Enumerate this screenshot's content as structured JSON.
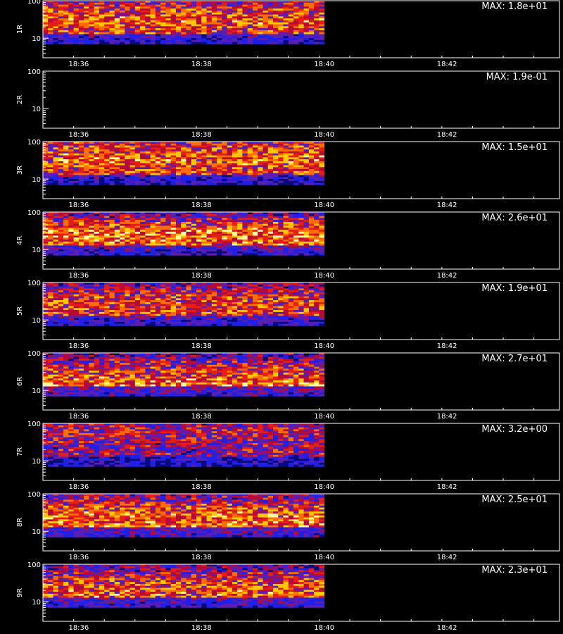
{
  "chart_data": {
    "type": "heatmap",
    "x_axis": {
      "range": [
        "18:35:25",
        "18:43:50"
      ],
      "tick_labels": [
        "18:36",
        "18:38",
        "18:40",
        "18:42"
      ],
      "data_end": "18:40"
    },
    "y_axis": {
      "scale": "log",
      "range": [
        3,
        100
      ],
      "tick_labels": [
        "10",
        "100"
      ]
    },
    "colormap": [
      "#000000",
      "#0a0a78",
      "#2020e8",
      "#5a1eb4",
      "#b40a3c",
      "#e61e14",
      "#ff6e00",
      "#ffc800",
      "#ffffa0"
    ],
    "panels": [
      {
        "label": "1R",
        "max": "MAX: 1.8e+01",
        "profile": [
          [
            0.0,
            0.45
          ],
          [
            0.16,
            0.6
          ],
          [
            0.45,
            0.7
          ],
          [
            0.75,
            0.62
          ],
          [
            1.0,
            0.45
          ]
        ],
        "empty": false
      },
      {
        "label": "2R",
        "max": "MAX: 1.9e-01",
        "profile": [],
        "empty": true
      },
      {
        "label": "3R",
        "max": "MAX: 1.5e+01",
        "profile": [
          [
            0.0,
            0.55
          ],
          [
            0.16,
            0.65
          ],
          [
            0.45,
            0.7
          ],
          [
            0.75,
            0.6
          ],
          [
            1.0,
            0.45
          ]
        ],
        "empty": false
      },
      {
        "label": "4R",
        "max": "MAX: 2.6e+01",
        "profile": [
          [
            0.0,
            0.35
          ],
          [
            0.16,
            0.5
          ],
          [
            0.45,
            0.78
          ],
          [
            0.75,
            0.68
          ],
          [
            1.0,
            0.45
          ]
        ],
        "empty": false
      },
      {
        "label": "5R",
        "max": "MAX: 1.9e+01",
        "profile": [
          [
            0.0,
            0.35
          ],
          [
            0.16,
            0.5
          ],
          [
            0.45,
            0.68
          ],
          [
            0.75,
            0.62
          ],
          [
            1.0,
            0.5
          ]
        ],
        "empty": false
      },
      {
        "label": "6R",
        "max": "MAX: 2.7e+01",
        "profile": [
          [
            0.0,
            0.3
          ],
          [
            0.16,
            0.45
          ],
          [
            0.45,
            0.62
          ],
          [
            0.75,
            0.75
          ],
          [
            1.0,
            0.55
          ]
        ],
        "empty": false
      },
      {
        "label": "7R",
        "max": "MAX: 3.2e+00",
        "profile": [
          [
            0.0,
            0.45
          ],
          [
            0.16,
            0.55
          ],
          [
            0.45,
            0.45
          ],
          [
            0.75,
            0.45
          ],
          [
            1.0,
            0.4
          ]
        ],
        "empty": false
      },
      {
        "label": "8R",
        "max": "MAX: 2.5e+01",
        "profile": [
          [
            0.0,
            0.4
          ],
          [
            0.16,
            0.5
          ],
          [
            0.45,
            0.7
          ],
          [
            0.75,
            0.72
          ],
          [
            1.0,
            0.55
          ]
        ],
        "empty": false
      },
      {
        "label": "9R",
        "max": "MAX: 2.3e+01",
        "profile": [
          [
            0.0,
            0.35
          ],
          [
            0.16,
            0.45
          ],
          [
            0.45,
            0.65
          ],
          [
            0.75,
            0.7
          ],
          [
            1.0,
            0.5
          ]
        ],
        "empty": false
      }
    ],
    "grid": false,
    "legend": "none"
  }
}
